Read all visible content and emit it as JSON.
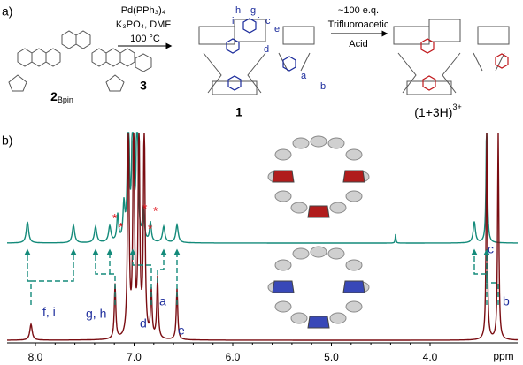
{
  "panel_a": {
    "label": "a)",
    "reactant": {
      "number": "2",
      "subscript": "Bpin"
    },
    "reagent": {
      "number": "3"
    },
    "conditions": [
      "Pd(PPh₃)₄",
      "K₃PO₄, DMF",
      "100 °C"
    ],
    "product": {
      "number": "1"
    },
    "acid_conditions": [
      "~100 e.q.",
      "Trifluoroacetic",
      "Acid"
    ],
    "protonated": {
      "main": "(1+3H)",
      "charge": "3+"
    },
    "proton_labels": [
      "h",
      "g",
      "i",
      "f",
      "c",
      "e",
      "d",
      "a",
      "b"
    ]
  },
  "panel_b": {
    "label": "b)",
    "asterisks": [
      "*",
      "*",
      "*",
      "*",
      "*"
    ],
    "peak_labels": [
      "f, i",
      "g, h",
      "d",
      "a",
      "e",
      "c",
      "b"
    ],
    "axis": {
      "ticks": [
        "8.0",
        "7.0",
        "6.0",
        "5.0",
        "4.0"
      ],
      "unit": "ppm"
    }
  }
}
